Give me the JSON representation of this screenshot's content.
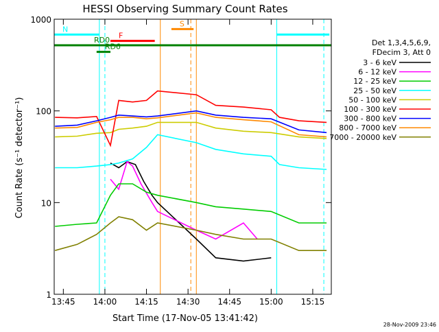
{
  "chart_data": {
    "type": "line",
    "title": "HESSI Observing Summary Count Rates",
    "xlabel": "Start Time (17-Nov-05 13:41:42)",
    "ylabel": "Count Rate (s⁻¹ detector⁻¹)",
    "yscale": "log",
    "ylim": [
      1,
      1000
    ],
    "xlim": [
      "13:41:42",
      "15:21:42"
    ],
    "x_ticks": [
      "13:45",
      "14:00",
      "14:15",
      "14:30",
      "14:45",
      "15:00",
      "15:15"
    ],
    "y_ticks": [
      "1",
      "10",
      "100",
      "1000"
    ],
    "grid": false,
    "legend_title": [
      "Det 1,3,4,5,6,9,",
      "FDecim 3, Att 0"
    ],
    "legend_position": "right",
    "series": [
      {
        "name": "3 - 6 keV",
        "color": "#000000",
        "points": [
          [
            "14:02",
            27
          ],
          [
            "14:05",
            24
          ],
          [
            "14:08",
            28
          ],
          [
            "14:11",
            26
          ],
          [
            "14:14",
            17
          ],
          [
            "14:17",
            12
          ],
          [
            "14:19",
            10
          ],
          [
            "14:33",
            4
          ],
          [
            "14:40",
            2.5
          ],
          [
            "14:50",
            2.3
          ],
          [
            "15:00",
            2.5
          ]
        ]
      },
      {
        "name": "6 - 12 keV",
        "color": "#ff00ff",
        "points": [
          [
            "14:02",
            18
          ],
          [
            "14:05",
            14
          ],
          [
            "14:08",
            28
          ],
          [
            "14:10",
            25
          ],
          [
            "14:13",
            16
          ],
          [
            "14:17",
            10
          ],
          [
            "14:19",
            8
          ],
          [
            "14:33",
            5
          ],
          [
            "14:40",
            4
          ],
          [
            "14:50",
            6
          ],
          [
            "14:55",
            4
          ]
        ]
      },
      {
        "name": "12 - 25 keV",
        "color": "#00cc00",
        "points": [
          [
            "13:42",
            5.5
          ],
          [
            "13:50",
            5.8
          ],
          [
            "13:57",
            6
          ],
          [
            "14:02",
            12
          ],
          [
            "14:05",
            16
          ],
          [
            "14:10",
            16
          ],
          [
            "14:15",
            13
          ],
          [
            "14:19",
            12
          ],
          [
            "14:33",
            10
          ],
          [
            "14:40",
            9
          ],
          [
            "14:50",
            8.5
          ],
          [
            "15:00",
            8
          ],
          [
            "15:10",
            6
          ],
          [
            "15:20",
            6
          ]
        ]
      },
      {
        "name": "25 - 50 keV",
        "color": "#00ffff",
        "points": [
          [
            "13:42",
            24
          ],
          [
            "13:50",
            24
          ],
          [
            "13:57",
            25
          ],
          [
            "14:02",
            26
          ],
          [
            "14:05",
            27
          ],
          [
            "14:10",
            30
          ],
          [
            "14:15",
            40
          ],
          [
            "14:19",
            55
          ],
          [
            "14:33",
            45
          ],
          [
            "14:40",
            38
          ],
          [
            "14:50",
            34
          ],
          [
            "15:00",
            32
          ],
          [
            "15:03",
            26
          ],
          [
            "15:10",
            24
          ],
          [
            "15:20",
            23
          ]
        ]
      },
      {
        "name": "50 - 100 keV",
        "color": "#cccc00",
        "points": [
          [
            "13:42",
            52
          ],
          [
            "13:50",
            53
          ],
          [
            "13:57",
            57
          ],
          [
            "14:02",
            58
          ],
          [
            "14:05",
            63
          ],
          [
            "14:10",
            65
          ],
          [
            "14:15",
            68
          ],
          [
            "14:19",
            75
          ],
          [
            "14:33",
            75
          ],
          [
            "14:40",
            65
          ],
          [
            "14:50",
            60
          ],
          [
            "15:00",
            58
          ],
          [
            "15:10",
            52
          ],
          [
            "15:20",
            50
          ]
        ]
      },
      {
        "name": "100 - 300 keV",
        "color": "#ff0000",
        "points": [
          [
            "13:42",
            85
          ],
          [
            "13:50",
            84
          ],
          [
            "13:57",
            87
          ],
          [
            "14:02",
            42
          ],
          [
            "14:05",
            130
          ],
          [
            "14:10",
            125
          ],
          [
            "14:15",
            130
          ],
          [
            "14:19",
            165
          ],
          [
            "14:33",
            150
          ],
          [
            "14:40",
            115
          ],
          [
            "14:50",
            110
          ],
          [
            "15:00",
            103
          ],
          [
            "15:03",
            85
          ],
          [
            "15:10",
            78
          ],
          [
            "15:20",
            75
          ]
        ]
      },
      {
        "name": "300 - 800 keV",
        "color": "#0000ff",
        "points": [
          [
            "13:42",
            68
          ],
          [
            "13:50",
            70
          ],
          [
            "13:57",
            78
          ],
          [
            "14:02",
            85
          ],
          [
            "14:05",
            90
          ],
          [
            "14:10",
            88
          ],
          [
            "14:15",
            86
          ],
          [
            "14:19",
            88
          ],
          [
            "14:33",
            100
          ],
          [
            "14:40",
            90
          ],
          [
            "14:50",
            85
          ],
          [
            "15:00",
            82
          ],
          [
            "15:10",
            62
          ],
          [
            "15:20",
            58
          ]
        ]
      },
      {
        "name": "800 - 7000 keV",
        "color": "#ff8800",
        "points": [
          [
            "13:42",
            65
          ],
          [
            "13:50",
            66
          ],
          [
            "13:57",
            75
          ],
          [
            "14:02",
            80
          ],
          [
            "14:05",
            85
          ],
          [
            "14:10",
            85
          ],
          [
            "14:15",
            82
          ],
          [
            "14:19",
            84
          ],
          [
            "14:33",
            95
          ],
          [
            "14:40",
            85
          ],
          [
            "14:50",
            80
          ],
          [
            "15:00",
            76
          ],
          [
            "15:10",
            55
          ],
          [
            "15:20",
            52
          ]
        ]
      },
      {
        "name": "7000 - 20000 keV",
        "color": "#808000",
        "points": [
          [
            "13:42",
            3
          ],
          [
            "13:50",
            3.5
          ],
          [
            "13:57",
            4.5
          ],
          [
            "14:02",
            6
          ],
          [
            "14:05",
            7
          ],
          [
            "14:10",
            6.5
          ],
          [
            "14:15",
            5
          ],
          [
            "14:19",
            6
          ],
          [
            "14:33",
            5
          ],
          [
            "14:40",
            4.5
          ],
          [
            "14:50",
            4
          ],
          [
            "15:00",
            4
          ],
          [
            "15:10",
            3
          ],
          [
            "15:20",
            3
          ]
        ]
      }
    ],
    "annotations": [
      {
        "label": "N",
        "color": "#00ffff",
        "y": 680,
        "ranges": [
          [
            "13:41:42",
            "13:58"
          ],
          [
            "15:02",
            "15:21"
          ]
        ]
      },
      {
        "label": "F",
        "color": "#ff0000",
        "y": 580,
        "ranges": [
          [
            "14:02",
            "14:18"
          ]
        ]
      },
      {
        "label": "S",
        "color": "#ff8800",
        "y": 780,
        "ranges": [
          [
            "14:24",
            "14:32"
          ]
        ]
      },
      {
        "label": "RD0",
        "color": "#008000",
        "y": 520,
        "ranges": [
          [
            "13:41:42",
            "15:21:42"
          ]
        ]
      },
      {
        "label": "RD6",
        "color": "#008000",
        "y": 440,
        "ranges": [
          [
            "13:57",
            "14:02"
          ]
        ]
      }
    ],
    "vertical_lines": [
      {
        "time": "13:58",
        "color": "#00ffff",
        "style": "solid"
      },
      {
        "time": "14:00",
        "color": "#00ffff",
        "style": "dashed"
      },
      {
        "time": "14:20",
        "color": "#ff8800",
        "style": "solid"
      },
      {
        "time": "14:31",
        "color": "#ff8800",
        "style": "dashed"
      },
      {
        "time": "14:33",
        "color": "#ff8800",
        "style": "solid"
      },
      {
        "time": "15:02",
        "color": "#00ffff",
        "style": "solid"
      },
      {
        "time": "15:19",
        "color": "#00ffff",
        "style": "dashed"
      }
    ]
  },
  "footer_timestamp": "28-Nov-2009 23:46"
}
